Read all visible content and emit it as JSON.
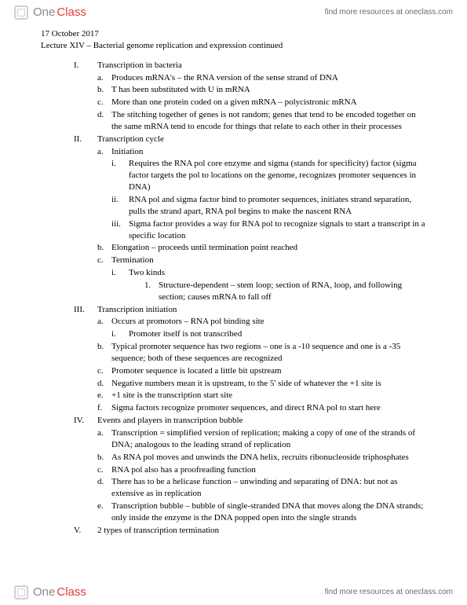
{
  "brand": {
    "one": "One",
    "class": "Class"
  },
  "header_link": "find more resources at oneclass.com",
  "footer_link": "find more resources at oneclass.com",
  "date": "17 October 2017",
  "lecture_title": "Lecture XIV – Bacterial genome replication and expression continued",
  "outline": [
    {
      "m": "I.",
      "t": "Transcription in bacteria",
      "c": [
        {
          "m": "a.",
          "t": "Produces mRNA's – the RNA version of the sense strand of DNA"
        },
        {
          "m": "b.",
          "t": "T has been substituted with U in mRNA"
        },
        {
          "m": "c.",
          "t": "More than one protein coded on a given mRNA – polycistronic mRNA"
        },
        {
          "m": "d.",
          "t": "The stitching together of genes is not random; genes that tend to be encoded together on the same mRNA tend to encode for things that relate to each other in their processes"
        }
      ]
    },
    {
      "m": "II.",
      "t": "Transcription cycle",
      "c": [
        {
          "m": "a.",
          "t": "Initiation",
          "c": [
            {
              "m": "i.",
              "t": "Requires the RNA pol core enzyme and sigma (stands for specificity) factor (sigma factor targets the pol to locations on the genome, recognizes promoter sequences in DNA)"
            },
            {
              "m": "ii.",
              "t": "RNA pol and sigma factor bind to promoter sequences, initiates strand separation, pulls the strand apart, RNA pol begins to make the nascent RNA"
            },
            {
              "m": "iii.",
              "t": "Sigma factor provides a way for RNA pol to recognize signals to start a transcript in a specific location"
            }
          ]
        },
        {
          "m": "b.",
          "t": "Elongation – proceeds until termination point reached"
        },
        {
          "m": "c.",
          "t": "Termination",
          "c": [
            {
              "m": "i.",
              "t": "Two kinds",
              "c": [
                {
                  "m": "1.",
                  "t": "Structure-dependent – stem loop; section of RNA, loop, and following section; causes mRNA to fall off"
                }
              ]
            }
          ]
        }
      ]
    },
    {
      "m": "III.",
      "t": "Transcription initiation",
      "c": [
        {
          "m": "a.",
          "t": "Occurs at promotors – RNA pol binding site",
          "c": [
            {
              "m": "i.",
              "t": "Promoter itself is not transcribed"
            }
          ]
        },
        {
          "m": "b.",
          "t": "Typical promoter sequence has two regions – one is a -10 sequence and one is a -35 sequence; both of these sequences are recognized"
        },
        {
          "m": "c.",
          "t": "Promoter sequence is located a little bit upstream"
        },
        {
          "m": "d.",
          "t": "Negative numbers mean it is upstream, to the 5' side of whatever the +1 site is"
        },
        {
          "m": "e.",
          "t": "+1 site is the transcription start site"
        },
        {
          "m": "f.",
          "t": "Sigma factors recognize promoter sequences, and direct RNA pol to start here"
        }
      ]
    },
    {
      "m": "IV.",
      "t": "Events and players in transcription bubble",
      "c": [
        {
          "m": "a.",
          "t": "Transcription = simplified version of replication; making a copy of one of the strands of DNA; analogous to the leading strand of replication"
        },
        {
          "m": "b.",
          "t": "As RNA pol moves and unwinds the DNA helix, recruits ribonucleoside triphosphates"
        },
        {
          "m": "c.",
          "t": "RNA pol also has a proofreading function"
        },
        {
          "m": "d.",
          "t": "There has to be a helicase function – unwinding and separating of DNA: but not as extensive as in replication"
        },
        {
          "m": "e.",
          "t": "Transcription bubble – bubble of single-stranded DNA that moves along the DNA strands; only inside the enzyme is the DNA popped open into the single strands"
        }
      ]
    },
    {
      "m": "V.",
      "t": "2 types of transcription termination"
    }
  ]
}
